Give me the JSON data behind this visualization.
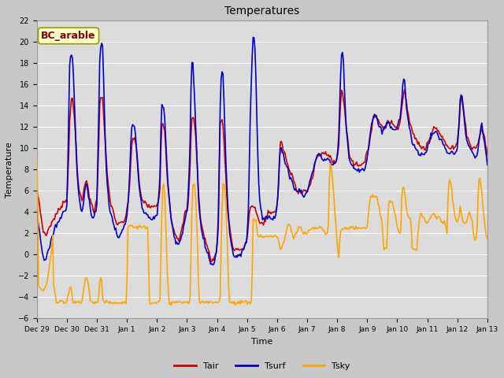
{
  "title": "Temperatures",
  "xlabel": "Time",
  "ylabel": "Temperature",
  "ylim": [
    -6,
    22
  ],
  "yticks": [
    -6,
    -4,
    -2,
    0,
    2,
    4,
    6,
    8,
    10,
    12,
    14,
    16,
    18,
    20,
    22
  ],
  "xtick_labels": [
    "Dec 29",
    "Dec 30",
    "Dec 31",
    "Jan 1",
    "Jan 2",
    "Jan 3",
    "Jan 4",
    "Jan 5",
    "Jan 6",
    "Jan 7",
    "Jan 8",
    "Jan 9",
    "Jan 10",
    "Jan 11",
    "Jan 12",
    "Jan 13"
  ],
  "annotation_text": "BC_arable",
  "annotation_color": "#8B0000",
  "annotation_bg": "#FFFFCC",
  "line_colors": {
    "Tair": "#CC0000",
    "Tsurf": "#0000CC",
    "Tsky": "#FFA500"
  },
  "line_widths": {
    "Tair": 1.2,
    "Tsurf": 1.2,
    "Tsky": 1.2
  },
  "fig_bg": "#C8C8C8",
  "plot_bg": "#E0E0E0",
  "grid_color": "#FFFFFF",
  "n_points": 480
}
